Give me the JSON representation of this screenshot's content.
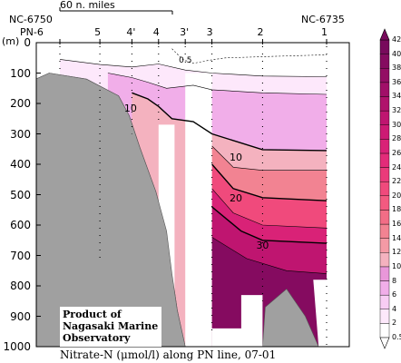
{
  "chart_data": {
    "type": "contour-section",
    "title": "Nitrate-N (μmol/l) along PN line, 07-01",
    "credit": [
      "Product of",
      "Nagasaki Marine",
      "Observatory"
    ],
    "ylabel": "(m)",
    "ylim": [
      0,
      1000
    ],
    "y_ticks": [
      0,
      100,
      200,
      300,
      400,
      500,
      600,
      700,
      800,
      900,
      1000
    ],
    "scale_bar_label": "60 n. miles",
    "left_station_id": "NC-6750",
    "right_station_id": "NC-6735",
    "stations": [
      "PN-6",
      "5",
      "4'",
      "4",
      "3'",
      "3",
      "2",
      "1"
    ],
    "station_positions": [
      0.0,
      0.15,
      0.27,
      0.37,
      0.47,
      0.57,
      0.76,
      1.0
    ],
    "colorbar_levels": [
      0.5,
      2,
      4,
      6,
      8,
      10,
      12,
      14,
      16,
      18,
      20,
      22,
      24,
      26,
      28,
      30,
      32,
      34,
      36,
      38,
      40,
      42
    ],
    "colorbar_colors": [
      "#ffffff",
      "#fde8fb",
      "#f8cdf4",
      "#f1aee9",
      "#e997d9",
      "#f4b2bf",
      "#f49aa5",
      "#f28392",
      "#f26d86",
      "#f35a80",
      "#f04a7c",
      "#ea3a7a",
      "#e32c79",
      "#d92277",
      "#cd1a74",
      "#bf1570",
      "#b0126c",
      "#a10f68",
      "#930d64",
      "#850b60",
      "#780a5c"
    ],
    "contour_labels": [
      {
        "value": "0.5",
        "x_frac": 0.47,
        "depth": 60
      },
      {
        "value": "10",
        "x_frac": 0.265,
        "depth": 218
      },
      {
        "value": "10",
        "x_frac": 0.66,
        "depth": 380
      },
      {
        "value": "20",
        "x_frac": 0.66,
        "depth": 514
      },
      {
        "value": "30",
        "x_frac": 0.76,
        "depth": 670
      }
    ],
    "contours": [
      {
        "value": 0.5,
        "style": "dashed",
        "points": [
          [
            0.42,
            20
          ],
          [
            0.46,
            55
          ],
          [
            0.5,
            68
          ],
          [
            0.56,
            58
          ],
          [
            0.62,
            50
          ],
          [
            0.8,
            45
          ],
          [
            1.0,
            40
          ]
        ]
      },
      {
        "value": 2,
        "points": [
          [
            0.0,
            55
          ],
          [
            0.15,
            72
          ],
          [
            0.27,
            80
          ],
          [
            0.37,
            70
          ],
          [
            0.47,
            90
          ],
          [
            0.57,
            100
          ],
          [
            0.76,
            110
          ],
          [
            1.0,
            112
          ]
        ]
      },
      {
        "value": 6,
        "points": [
          [
            0.18,
            100
          ],
          [
            0.27,
            115
          ],
          [
            0.33,
            130
          ],
          [
            0.4,
            150
          ],
          [
            0.5,
            140
          ],
          [
            0.57,
            155
          ],
          [
            0.76,
            165
          ],
          [
            1.0,
            170
          ]
        ]
      },
      {
        "value": 10,
        "points": [
          [
            0.27,
            165
          ],
          [
            0.33,
            185
          ],
          [
            0.37,
            210
          ],
          [
            0.42,
            250
          ],
          [
            0.5,
            260
          ],
          [
            0.57,
            300
          ],
          [
            0.76,
            352
          ],
          [
            1.0,
            355
          ]
        ]
      },
      {
        "value": 14,
        "points": [
          [
            0.57,
            340
          ],
          [
            0.65,
            410
          ],
          [
            0.76,
            420
          ],
          [
            1.0,
            420
          ]
        ]
      },
      {
        "value": 20,
        "points": [
          [
            0.57,
            400
          ],
          [
            0.65,
            480
          ],
          [
            0.76,
            510
          ],
          [
            1.0,
            520
          ]
        ]
      },
      {
        "value": 26,
        "points": [
          [
            0.57,
            480
          ],
          [
            0.65,
            560
          ],
          [
            0.76,
            600
          ],
          [
            1.0,
            610
          ]
        ]
      },
      {
        "value": 30,
        "points": [
          [
            0.57,
            540
          ],
          [
            0.68,
            620
          ],
          [
            0.76,
            650
          ],
          [
            1.0,
            660
          ]
        ]
      },
      {
        "value": 34,
        "points": [
          [
            0.57,
            640
          ],
          [
            0.7,
            710
          ],
          [
            0.85,
            750
          ],
          [
            1.0,
            760
          ]
        ]
      }
    ]
  }
}
